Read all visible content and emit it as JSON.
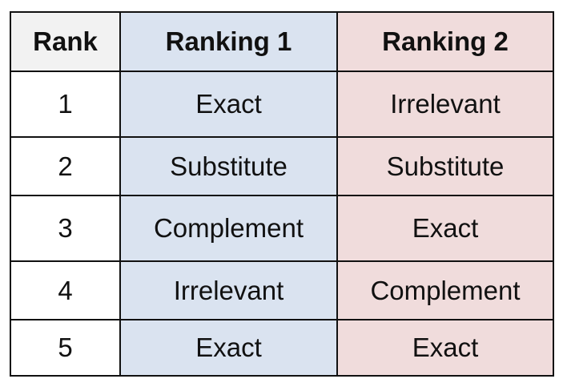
{
  "table": {
    "header": [
      "Rank",
      "Ranking 1",
      "Ranking 2"
    ],
    "rows": [
      [
        1,
        "Exact",
        "Irrelevant"
      ],
      [
        2,
        "Substitute",
        "Substitute"
      ],
      [
        3,
        "Complement",
        "Exact"
      ],
      [
        4,
        "Irrelevant",
        "Complement"
      ],
      [
        5,
        "Exact",
        "Exact"
      ]
    ]
  }
}
